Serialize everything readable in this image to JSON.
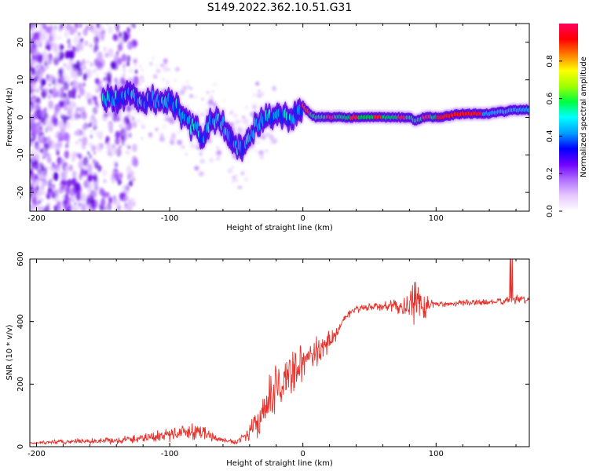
{
  "figure_title": "S149.2022.362.10.51.G31",
  "chart_data": [
    {
      "type": "heatmap",
      "xlabel": "Height of straight line (km)",
      "ylabel": "Frequency (Hz)",
      "xlim": [
        -205,
        170
      ],
      "ylim": [
        -25,
        25
      ],
      "xticks": [
        -200,
        -100,
        0,
        100
      ],
      "yticks": [
        -20,
        -10,
        0,
        10,
        20
      ],
      "colorbar": {
        "label": "Normalized spectral amplitude",
        "range": [
          0,
          1
        ],
        "ticks": [
          "0.0",
          "0.2",
          "0.4",
          "0.6",
          "0.8"
        ],
        "colors": [
          "#ffffff",
          "#e8c8ff",
          "#b070ff",
          "#7000ff",
          "#0000ff",
          "#00a0ff",
          "#00ffff",
          "#00ff40",
          "#a0ff00",
          "#ffff00",
          "#ff8000",
          "#ff0000",
          "#ff0060"
        ]
      },
      "ridge": {
        "x": [
          -160,
          -140,
          -130,
          -120,
          -110,
          -100,
          -95,
          -90,
          -85,
          -80,
          -75,
          -70,
          -65,
          -60,
          -55,
          -50,
          -45,
          -40,
          -35,
          -30,
          -25,
          -20,
          -15,
          -10,
          -5,
          0,
          5,
          10,
          20,
          40,
          60,
          80,
          85,
          90,
          100,
          120,
          140,
          160,
          170
        ],
        "y": [
          5,
          5,
          6,
          4,
          5,
          4,
          3,
          0,
          -2,
          -3,
          -6,
          -2,
          0,
          -2,
          -5,
          -8,
          -8,
          -5,
          -2,
          -1,
          0,
          1,
          0,
          0,
          1,
          3,
          1,
          0,
          0,
          0,
          0,
          0,
          -1,
          0,
          0,
          1,
          1,
          2,
          2
        ]
      }
    },
    {
      "type": "line",
      "xlabel": "Height of straight line (km)",
      "ylabel": "SNR (10 * v/v)",
      "xlim": [
        -205,
        170
      ],
      "ylim": [
        0,
        600
      ],
      "xticks": [
        -200,
        -100,
        0,
        100
      ],
      "yticks": [
        0,
        200,
        400,
        600
      ],
      "color": "#e8302a",
      "x": [
        -205,
        -180,
        -160,
        -140,
        -120,
        -100,
        -90,
        -80,
        -70,
        -60,
        -50,
        -40,
        -30,
        -20,
        -10,
        0,
        10,
        20,
        25,
        30,
        40,
        60,
        80,
        85,
        90,
        95,
        100,
        120,
        140,
        150,
        160,
        170
      ],
      "y": [
        12,
        15,
        18,
        20,
        28,
        40,
        45,
        55,
        35,
        20,
        15,
        45,
        100,
        190,
        230,
        270,
        300,
        340,
        360,
        410,
        440,
        450,
        445,
        470,
        450,
        460,
        455,
        460,
        462,
        465,
        470,
        470
      ],
      "amplitude": [
        6,
        10,
        12,
        14,
        20,
        28,
        30,
        40,
        22,
        8,
        12,
        30,
        70,
        110,
        90,
        70,
        60,
        50,
        30,
        15,
        15,
        20,
        40,
        110,
        100,
        25,
        12,
        12,
        12,
        12,
        18,
        12
      ]
    }
  ]
}
